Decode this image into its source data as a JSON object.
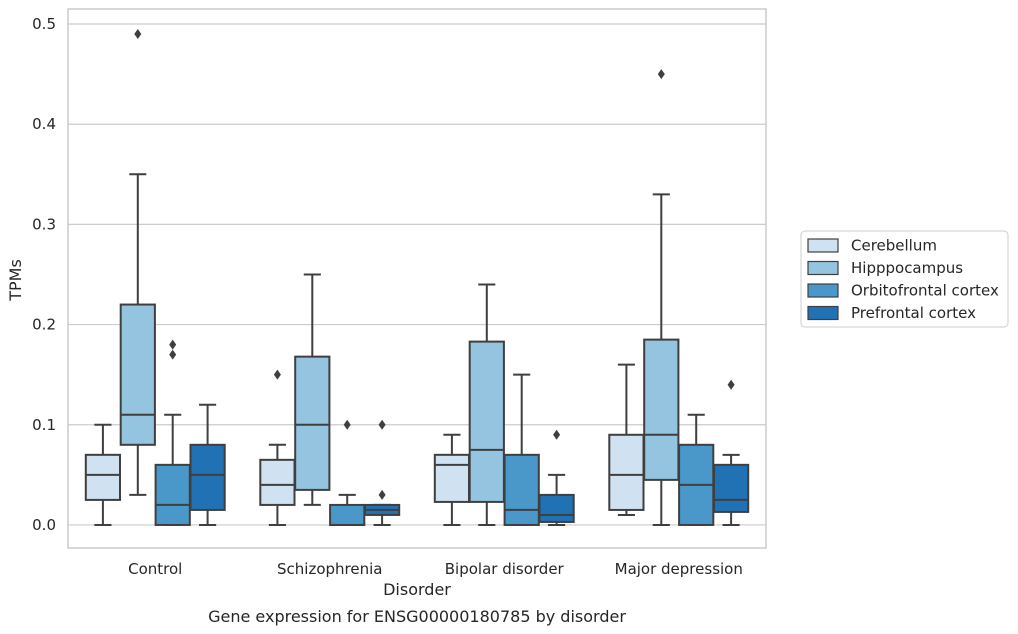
{
  "chart_data": {
    "type": "boxplot",
    "title": "Gene expression for ENSG00000180785 by disorder",
    "xlabel": "Disorder",
    "ylabel": "TPMs",
    "ylim": [
      -0.023,
      0.515
    ],
    "yticks": [
      "0.0",
      "0.1",
      "0.2",
      "0.3",
      "0.4",
      "0.5"
    ],
    "categories": [
      "Control",
      "Schizophrenia",
      "Bipolar disorder",
      "Major depression"
    ],
    "grid": true,
    "legend_position": "right",
    "series": [
      {
        "name": "Cerebellum",
        "color": "#d0e1f2",
        "boxes": [
          {
            "whislo": 0.0,
            "q1": 0.025,
            "med": 0.05,
            "q3": 0.07,
            "whishi": 0.1,
            "fliers": []
          },
          {
            "whislo": 0.0,
            "q1": 0.02,
            "med": 0.04,
            "q3": 0.065,
            "whishi": 0.08,
            "fliers": [
              0.15
            ]
          },
          {
            "whislo": 0.0,
            "q1": 0.023,
            "med": 0.06,
            "q3": 0.07,
            "whishi": 0.09,
            "fliers": []
          },
          {
            "whislo": 0.01,
            "q1": 0.015,
            "med": 0.05,
            "q3": 0.09,
            "whishi": 0.16,
            "fliers": []
          }
        ]
      },
      {
        "name": "Hipppocampus",
        "color": "#94c4df",
        "boxes": [
          {
            "whislo": 0.03,
            "q1": 0.08,
            "med": 0.11,
            "q3": 0.22,
            "whishi": 0.35,
            "fliers": [
              0.49
            ]
          },
          {
            "whislo": 0.02,
            "q1": 0.035,
            "med": 0.1,
            "q3": 0.168,
            "whishi": 0.25,
            "fliers": []
          },
          {
            "whislo": 0.0,
            "q1": 0.023,
            "med": 0.075,
            "q3": 0.183,
            "whishi": 0.24,
            "fliers": []
          },
          {
            "whislo": 0.0,
            "q1": 0.045,
            "med": 0.09,
            "q3": 0.185,
            "whishi": 0.33,
            "fliers": [
              0.45
            ]
          }
        ]
      },
      {
        "name": "Orbitofrontal cortex",
        "color": "#4a98c9",
        "boxes": [
          {
            "whislo": 0.0,
            "q1": 0.0,
            "med": 0.02,
            "q3": 0.06,
            "whishi": 0.11,
            "fliers": [
              0.17,
              0.18
            ]
          },
          {
            "whislo": 0.0,
            "q1": 0.0,
            "med": 0.0,
            "q3": 0.02,
            "whishi": 0.03,
            "fliers": [
              0.1
            ]
          },
          {
            "whislo": 0.0,
            "q1": 0.0,
            "med": 0.015,
            "q3": 0.07,
            "whishi": 0.15,
            "fliers": []
          },
          {
            "whislo": 0.0,
            "q1": 0.0,
            "med": 0.04,
            "q3": 0.08,
            "whishi": 0.11,
            "fliers": []
          }
        ]
      },
      {
        "name": "Prefrontal cortex",
        "color": "#2171b5",
        "boxes": [
          {
            "whislo": 0.0,
            "q1": 0.015,
            "med": 0.05,
            "q3": 0.08,
            "whishi": 0.12,
            "fliers": []
          },
          {
            "whislo": 0.0,
            "q1": 0.01,
            "med": 0.015,
            "q3": 0.02,
            "whishi": 0.02,
            "fliers": [
              0.03,
              0.1
            ]
          },
          {
            "whislo": 0.0,
            "q1": 0.003,
            "med": 0.01,
            "q3": 0.03,
            "whishi": 0.05,
            "fliers": [
              0.09
            ]
          },
          {
            "whislo": 0.0,
            "q1": 0.013,
            "med": 0.025,
            "q3": 0.06,
            "whishi": 0.07,
            "fliers": [
              0.14
            ]
          }
        ]
      }
    ]
  }
}
